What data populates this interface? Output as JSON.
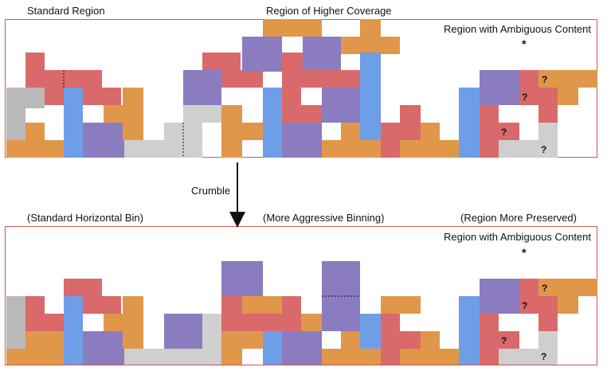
{
  "labels": {
    "standard_region": "Standard Region",
    "higher_coverage": "Region of Higher Coverage",
    "ambiguous_top": "Region with Ambiguous Content",
    "crumble": "Crumble",
    "standard_bin": "(Standard Horizontal Bin)",
    "aggressive_binning": "(More Aggressive Binning)",
    "region_preserved": "(Region More Preserved)",
    "ambiguous_bottom": "Region with Ambiguous Content",
    "star": "*",
    "question": "?"
  },
  "colors": {
    "orange": "#e0974a",
    "red": "#d9696a",
    "purple": "#8b7cc0",
    "blue": "#6f9ee8",
    "lightgray": "#cfcfcf",
    "gray": "#b9b9b9",
    "frame": "#d9534f"
  }
}
